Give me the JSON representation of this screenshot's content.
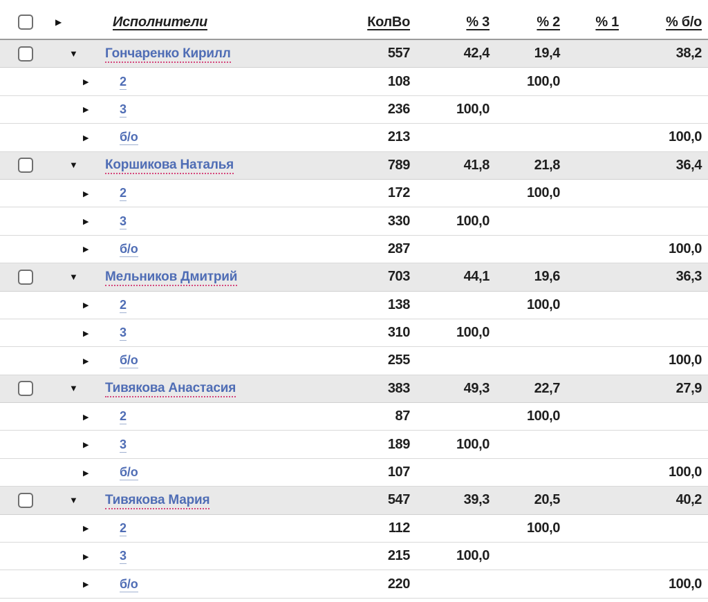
{
  "icons": {
    "collapsed_glyph": "▶",
    "expanded_glyph": "▼"
  },
  "colors": {
    "link_blue": "#4f6db5",
    "name_underline_pink": "#d5477c",
    "sub_underline_blue": "#9fb0d0",
    "group_row_bg": "#e9e9e9",
    "header_rule_gray": "#9b9b9b",
    "row_rule_gray": "#d9d9d9",
    "text_dark": "#1f1f1f"
  },
  "table": {
    "header": {
      "columns": {
        "name": "Исполнители",
        "kolvo": "КолВо",
        "p3": "% 3",
        "p2": "% 2",
        "p1": "% 1",
        "pbo": "% б/о"
      }
    },
    "groups": [
      {
        "name": "Гончаренко Кирилл",
        "kolvo": "557",
        "p3": "42,4",
        "p2": "19,4",
        "p1": "",
        "pbo": "38,2",
        "children": [
          {
            "name": "2",
            "kolvo": "108",
            "p3": "",
            "p2": "100,0",
            "p1": "",
            "pbo": ""
          },
          {
            "name": "3",
            "kolvo": "236",
            "p3": "100,0",
            "p2": "",
            "p1": "",
            "pbo": ""
          },
          {
            "name": "б/о",
            "kolvo": "213",
            "p3": "",
            "p2": "",
            "p1": "",
            "pbo": "100,0"
          }
        ]
      },
      {
        "name": "Коршикова Наталья",
        "kolvo": "789",
        "p3": "41,8",
        "p2": "21,8",
        "p1": "",
        "pbo": "36,4",
        "children": [
          {
            "name": "2",
            "kolvo": "172",
            "p3": "",
            "p2": "100,0",
            "p1": "",
            "pbo": ""
          },
          {
            "name": "3",
            "kolvo": "330",
            "p3": "100,0",
            "p2": "",
            "p1": "",
            "pbo": ""
          },
          {
            "name": "б/о",
            "kolvo": "287",
            "p3": "",
            "p2": "",
            "p1": "",
            "pbo": "100,0"
          }
        ]
      },
      {
        "name": "Мельников Дмитрий",
        "kolvo": "703",
        "p3": "44,1",
        "p2": "19,6",
        "p1": "",
        "pbo": "36,3",
        "children": [
          {
            "name": "2",
            "kolvo": "138",
            "p3": "",
            "p2": "100,0",
            "p1": "",
            "pbo": ""
          },
          {
            "name": "3",
            "kolvo": "310",
            "p3": "100,0",
            "p2": "",
            "p1": "",
            "pbo": ""
          },
          {
            "name": "б/о",
            "kolvo": "255",
            "p3": "",
            "p2": "",
            "p1": "",
            "pbo": "100,0"
          }
        ]
      },
      {
        "name": "Тивякова Анастасия",
        "kolvo": "383",
        "p3": "49,3",
        "p2": "22,7",
        "p1": "",
        "pbo": "27,9",
        "children": [
          {
            "name": "2",
            "kolvo": "87",
            "p3": "",
            "p2": "100,0",
            "p1": "",
            "pbo": ""
          },
          {
            "name": "3",
            "kolvo": "189",
            "p3": "100,0",
            "p2": "",
            "p1": "",
            "pbo": ""
          },
          {
            "name": "б/о",
            "kolvo": "107",
            "p3": "",
            "p2": "",
            "p1": "",
            "pbo": "100,0"
          }
        ]
      },
      {
        "name": "Тивякова Мария",
        "kolvo": "547",
        "p3": "39,3",
        "p2": "20,5",
        "p1": "",
        "pbo": "40,2",
        "children": [
          {
            "name": "2",
            "kolvo": "112",
            "p3": "",
            "p2": "100,0",
            "p1": "",
            "pbo": ""
          },
          {
            "name": "3",
            "kolvo": "215",
            "p3": "100,0",
            "p2": "",
            "p1": "",
            "pbo": ""
          },
          {
            "name": "б/о",
            "kolvo": "220",
            "p3": "",
            "p2": "",
            "p1": "",
            "pbo": "100,0"
          }
        ]
      }
    ]
  }
}
